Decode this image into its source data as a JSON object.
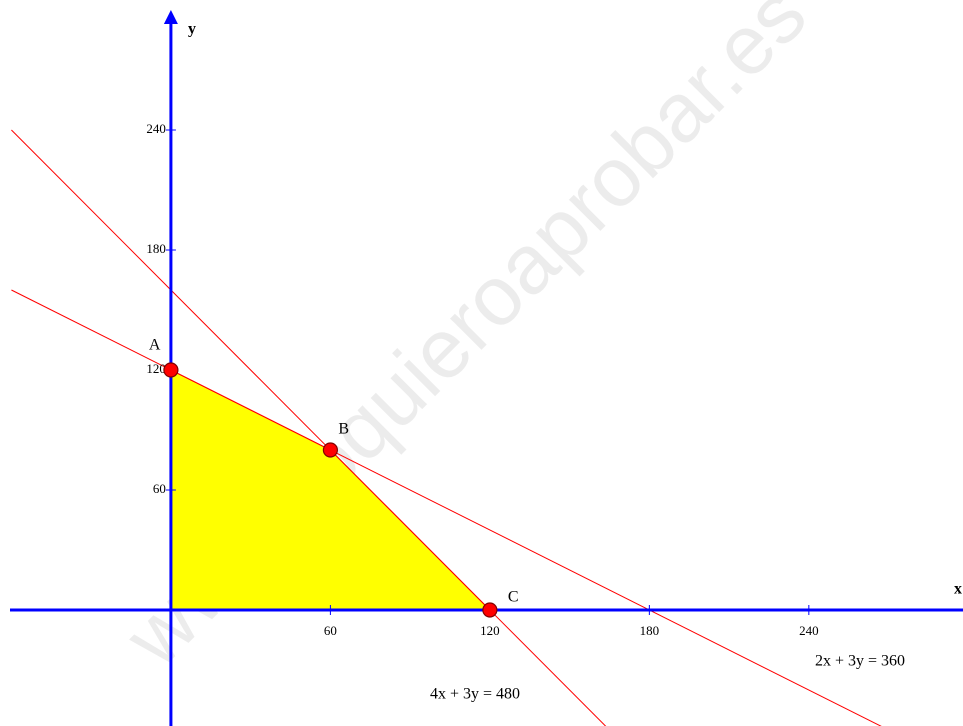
{
  "chart_data": {
    "type": "line",
    "watermark": "www.yoquieroaprobar.es",
    "x_label": "x",
    "y_label": "y",
    "xlim": [
      -64.3,
      298
    ],
    "ylim": [
      -58,
      305
    ],
    "xticks": [
      60,
      120,
      180,
      240
    ],
    "yticks": [
      60,
      120,
      180,
      240
    ],
    "axis_color": "#0000ff",
    "series": [
      {
        "name": "4x + 3y = 480",
        "color": "#ff0000",
        "x": [
          -60,
          165
        ],
        "values": [
          240,
          -60
        ]
      },
      {
        "name": "2x + 3y = 360",
        "color": "#ff0000",
        "x": [
          -60,
          270
        ],
        "values": [
          160,
          -60
        ]
      }
    ],
    "region": {
      "color": "#ffff00",
      "x": [
        0,
        0,
        60,
        120
      ],
      "values": [
        0,
        120,
        80,
        0
      ]
    },
    "points": {
      "color": "#ff0000",
      "labels": [
        "A",
        "B",
        "C"
      ],
      "x": [
        0,
        60,
        120
      ],
      "values": [
        120,
        80,
        0
      ]
    }
  }
}
